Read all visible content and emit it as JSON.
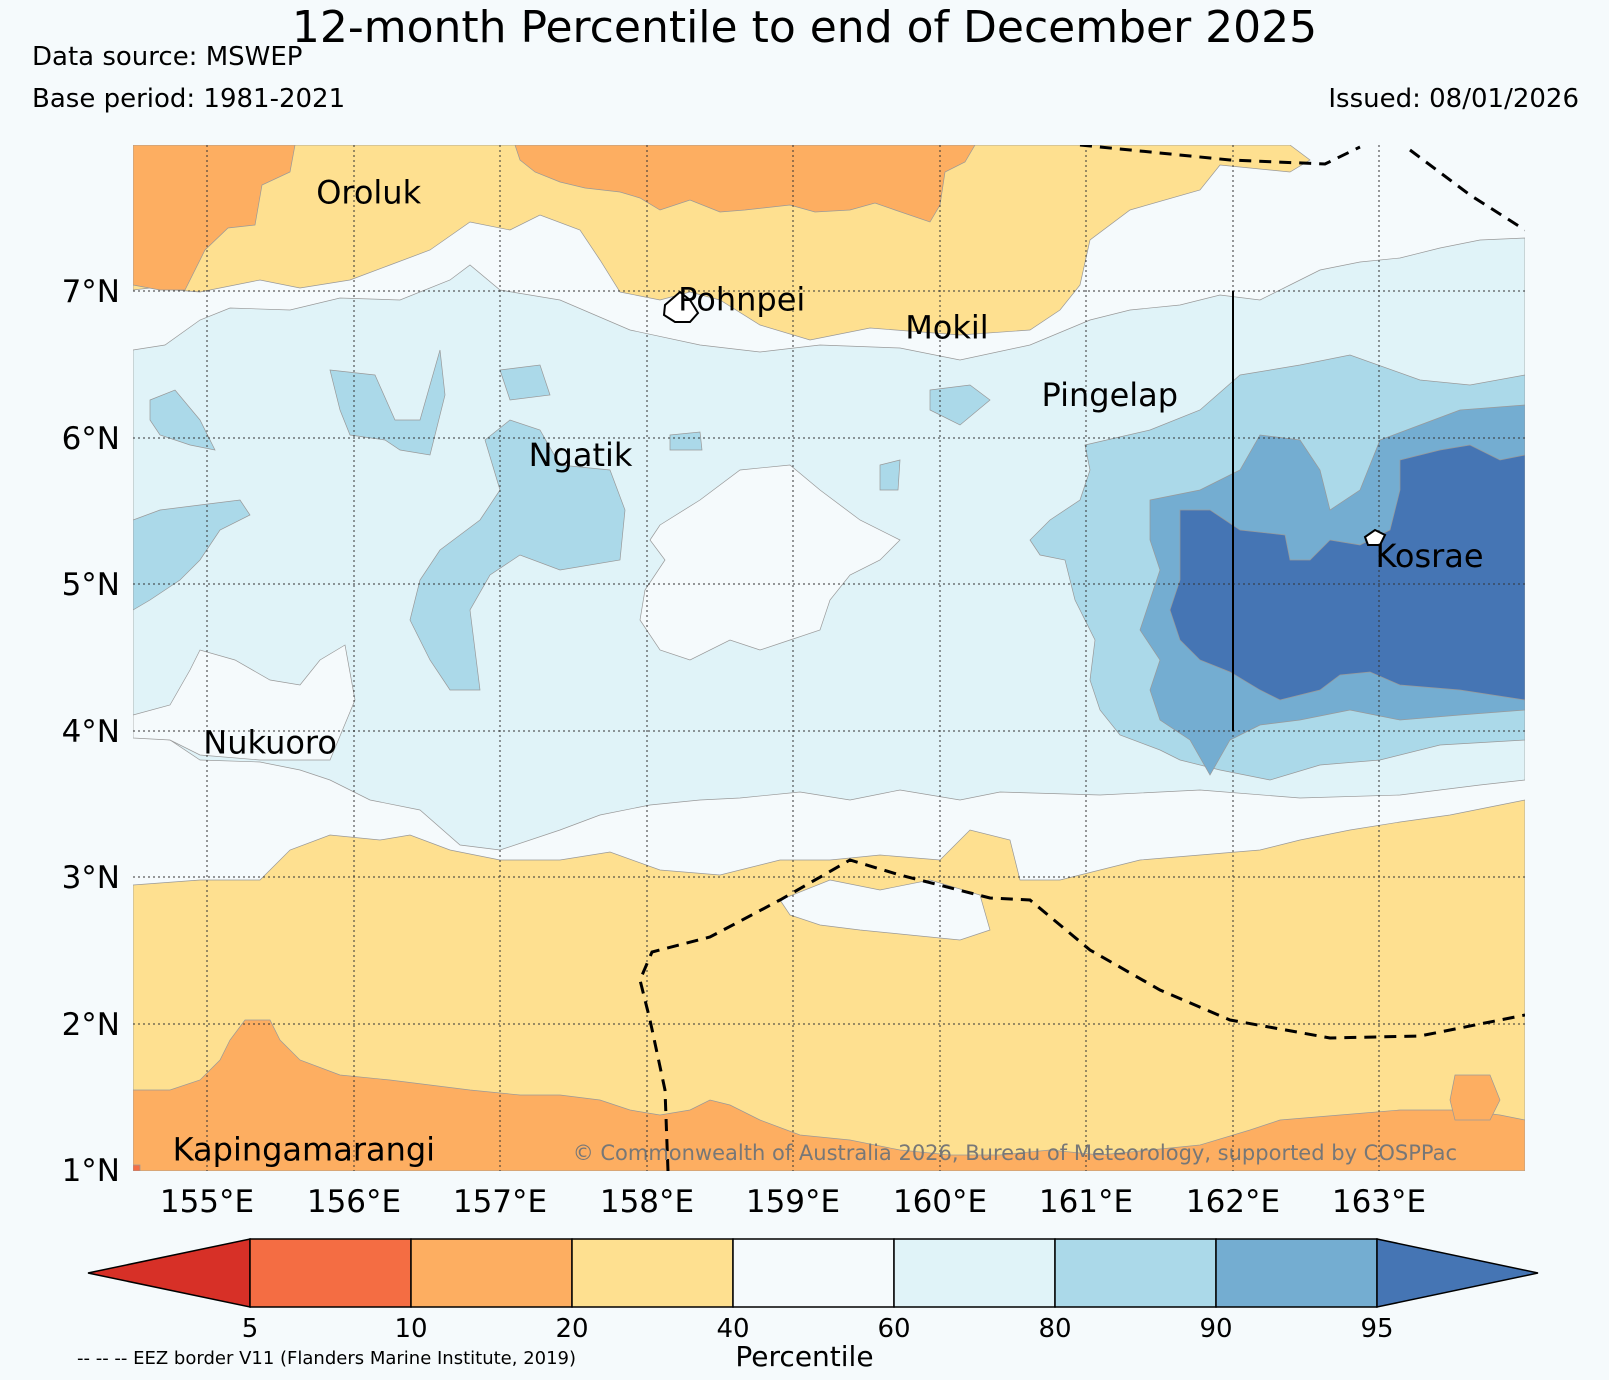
{
  "title": "12-month Percentile to end of December 2025",
  "data_source": "Data source: MSWEP",
  "base_period": "Base period: 1981-2021",
  "issued": "Issued: 08/01/2026",
  "map": {
    "lon_range": [
      154.5,
      164.0
    ],
    "lat_range": [
      1.0,
      8.0
    ],
    "lon_ticks": [
      "155°E",
      "156°E",
      "157°E",
      "158°E",
      "159°E",
      "160°E",
      "161°E",
      "162°E",
      "163°E"
    ],
    "lat_ticks": [
      "7°N",
      "6°N",
      "5°N",
      "4°N",
      "3°N",
      "2°N",
      "1°N"
    ],
    "places": [
      {
        "name": "Oroluk",
        "lon": 155.75,
        "lat": 7.6
      },
      {
        "name": "Pohnpei",
        "lon": 158.22,
        "lat": 6.87
      },
      {
        "name": "Mokil",
        "lon": 159.77,
        "lat": 6.68
      },
      {
        "name": "Pingelap",
        "lon": 160.7,
        "lat": 6.22
      },
      {
        "name": "Ngatik",
        "lon": 157.2,
        "lat": 5.81
      },
      {
        "name": "Kosrae",
        "lon": 162.98,
        "lat": 5.12
      },
      {
        "name": "Nukuoro",
        "lon": 154.98,
        "lat": 3.85
      },
      {
        "name": "Kapingamarangi",
        "lon": 154.77,
        "lat": 1.07
      }
    ],
    "copyright": "© Commonwealth of Australia 2026, Bureau of Meteorology, supported by COSPPac"
  },
  "legend": {
    "title": "Percentile",
    "boundaries": [
      "5",
      "10",
      "20",
      "40",
      "60",
      "80",
      "90",
      "95"
    ],
    "colors": [
      "#d73027",
      "#f46d43",
      "#fdae61",
      "#fee090",
      "#f5fafc",
      "#e0f3f8",
      "#abd9e9",
      "#74add1",
      "#4575b4"
    ],
    "footnote": "-- -- -- EEZ border V11 (Flanders Marine Institute, 2019)"
  }
}
